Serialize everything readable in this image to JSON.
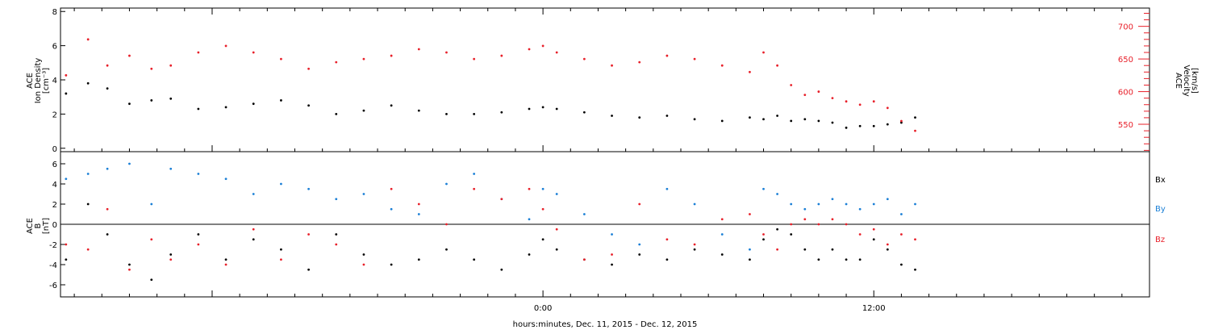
{
  "colors": {
    "black": "#000000",
    "red": "#e8202a",
    "blue": "#1a7fd6"
  },
  "xaxis": {
    "label": "hours:minutes, Dec. 11, 2015 - Dec. 12, 2015",
    "range_hours": [
      -17.5,
      22
    ],
    "ticks": [
      {
        "value": 0,
        "label": "0:00"
      },
      {
        "value": 12,
        "label": "12:00"
      }
    ]
  },
  "chart_data": [
    {
      "type": "scatter",
      "panel": "top",
      "ylabel_left": [
        "ACE",
        "Ion Density",
        "[cm⁻³]"
      ],
      "ylabel_right": [
        "ACE",
        "Velocity",
        "[km/s]"
      ],
      "ylim_left": [
        -0.2,
        8.2
      ],
      "ylim_right": [
        508,
        728
      ],
      "yticks_left": [
        0,
        2,
        4,
        6,
        8
      ],
      "yticks_right": [
        550,
        600,
        650,
        700
      ],
      "series": [
        {
          "name": "",
          "axis": "left",
          "color": "black",
          "x": [
            -17.3,
            -16.5,
            -15.8,
            -15.0,
            -14.2,
            -13.5,
            -12.5,
            -11.5,
            -10.5,
            -9.5,
            -8.5,
            -7.5,
            -6.5,
            -5.5,
            -4.5,
            -3.5,
            -2.5,
            -1.5,
            -0.5,
            0.0,
            0.5,
            1.5,
            2.5,
            3.5,
            4.5,
            5.5,
            6.5,
            7.5,
            8.0,
            8.5,
            9.0,
            9.5,
            10.0,
            10.5,
            11.0,
            11.5,
            12.0,
            12.5,
            13.0,
            13.5
          ],
          "y": [
            3.2,
            3.8,
            3.5,
            2.6,
            2.8,
            2.9,
            2.3,
            2.4,
            2.6,
            2.8,
            2.5,
            2.0,
            2.2,
            2.5,
            2.2,
            2.0,
            2.0,
            2.1,
            2.3,
            2.4,
            2.3,
            2.1,
            1.9,
            1.8,
            1.9,
            1.7,
            1.6,
            1.8,
            1.7,
            1.9,
            1.6,
            1.7,
            1.6,
            1.5,
            1.2,
            1.3,
            1.3,
            1.4,
            1.5,
            1.8
          ]
        },
        {
          "name": "",
          "axis": "right",
          "color": "red",
          "x": [
            -17.3,
            -16.5,
            -15.8,
            -15.0,
            -14.2,
            -13.5,
            -12.5,
            -11.5,
            -10.5,
            -9.5,
            -8.5,
            -7.5,
            -6.5,
            -5.5,
            -4.5,
            -3.5,
            -2.5,
            -1.5,
            -0.5,
            0.0,
            0.5,
            1.5,
            2.5,
            3.5,
            4.5,
            5.5,
            6.5,
            7.5,
            8.0,
            8.5,
            9.0,
            9.5,
            10.0,
            10.5,
            11.0,
            11.5,
            12.0,
            12.5,
            13.0,
            13.5
          ],
          "y": [
            625,
            680,
            640,
            655,
            635,
            640,
            660,
            670,
            660,
            650,
            635,
            645,
            650,
            655,
            665,
            660,
            650,
            655,
            665,
            670,
            660,
            650,
            640,
            645,
            655,
            650,
            640,
            630,
            660,
            640,
            610,
            595,
            600,
            590,
            585,
            580,
            585,
            575,
            555,
            540
          ]
        }
      ]
    },
    {
      "type": "scatter",
      "panel": "bottom",
      "ylabel_left": [
        "ACE",
        "B",
        "[nT]"
      ],
      "ylim": [
        -7.2,
        7.2
      ],
      "yticks": [
        -6,
        -4,
        -2,
        0,
        2,
        4,
        6
      ],
      "legend": [
        "Bx",
        "By",
        "Bz"
      ],
      "series": [
        {
          "name": "Bx",
          "color": "black",
          "x": [
            -17.3,
            -16.5,
            -15.8,
            -15.0,
            -14.2,
            -13.5,
            -12.5,
            -11.5,
            -10.5,
            -9.5,
            -8.5,
            -7.5,
            -6.5,
            -5.5,
            -4.5,
            -3.5,
            -2.5,
            -1.5,
            -0.5,
            0.0,
            0.5,
            1.5,
            2.5,
            3.5,
            4.5,
            5.5,
            6.5,
            7.5,
            8.0,
            8.5,
            9.0,
            9.5,
            10.0,
            10.5,
            11.0,
            11.5,
            12.0,
            12.5,
            13.0,
            13.5
          ],
          "y": [
            -3.5,
            2.0,
            -1.0,
            -4.0,
            -5.5,
            -3.0,
            -1.0,
            -3.5,
            -1.5,
            -2.5,
            -4.5,
            -1.0,
            -3.0,
            -4.0,
            -3.5,
            -2.5,
            -3.5,
            -4.5,
            -3.0,
            -1.5,
            -2.5,
            -3.5,
            -4.0,
            -3.0,
            -3.5,
            -2.5,
            -3.0,
            -3.5,
            -1.5,
            -0.5,
            -1.0,
            -2.5,
            -3.5,
            -2.5,
            -3.5,
            -3.5,
            -1.5,
            -2.5,
            -4.0,
            -4.5
          ]
        },
        {
          "name": "By",
          "color": "blue",
          "x": [
            -17.3,
            -16.5,
            -15.8,
            -15.0,
            -14.2,
            -13.5,
            -12.5,
            -11.5,
            -10.5,
            -9.5,
            -8.5,
            -7.5,
            -6.5,
            -5.5,
            -4.5,
            -3.5,
            -2.5,
            -1.5,
            -0.5,
            0.0,
            0.5,
            1.5,
            2.5,
            3.5,
            4.5,
            5.5,
            6.5,
            7.5,
            8.0,
            8.5,
            9.0,
            9.5,
            10.0,
            10.5,
            11.0,
            11.5,
            12.0,
            12.5,
            13.0,
            13.5
          ],
          "y": [
            4.5,
            5.0,
            5.5,
            6.0,
            2.0,
            5.5,
            5.0,
            4.5,
            3.0,
            4.0,
            3.5,
            2.5,
            3.0,
            1.5,
            1.0,
            4.0,
            5.0,
            2.5,
            0.5,
            3.5,
            3.0,
            1.0,
            -1.0,
            -2.0,
            3.5,
            2.0,
            -1.0,
            -2.5,
            3.5,
            3.0,
            2.0,
            1.5,
            2.0,
            2.5,
            2.0,
            1.5,
            2.0,
            2.5,
            1.0,
            2.0
          ]
        },
        {
          "name": "Bz",
          "color": "red",
          "x": [
            -17.3,
            -16.5,
            -15.8,
            -15.0,
            -14.2,
            -13.5,
            -12.5,
            -11.5,
            -10.5,
            -9.5,
            -8.5,
            -7.5,
            -6.5,
            -5.5,
            -4.5,
            -3.5,
            -2.5,
            -1.5,
            -0.5,
            0.0,
            0.5,
            1.5,
            2.5,
            3.5,
            4.5,
            5.5,
            6.5,
            7.5,
            8.0,
            8.5,
            9.0,
            9.5,
            10.0,
            10.5,
            11.0,
            11.5,
            12.0,
            12.5,
            13.0,
            13.5
          ],
          "y": [
            -2.0,
            -2.5,
            1.5,
            -4.5,
            -1.5,
            -3.5,
            -2.0,
            -4.0,
            -0.5,
            -3.5,
            -1.0,
            -2.0,
            -4.0,
            3.5,
            2.0,
            0.0,
            3.5,
            2.5,
            3.5,
            1.5,
            -0.5,
            -3.5,
            -3.0,
            2.0,
            -1.5,
            -2.0,
            0.5,
            1.0,
            -1.0,
            -2.5,
            0.0,
            0.5,
            0.0,
            0.5,
            0.0,
            -1.0,
            -0.5,
            -2.0,
            -1.0,
            -1.5
          ]
        }
      ]
    }
  ]
}
